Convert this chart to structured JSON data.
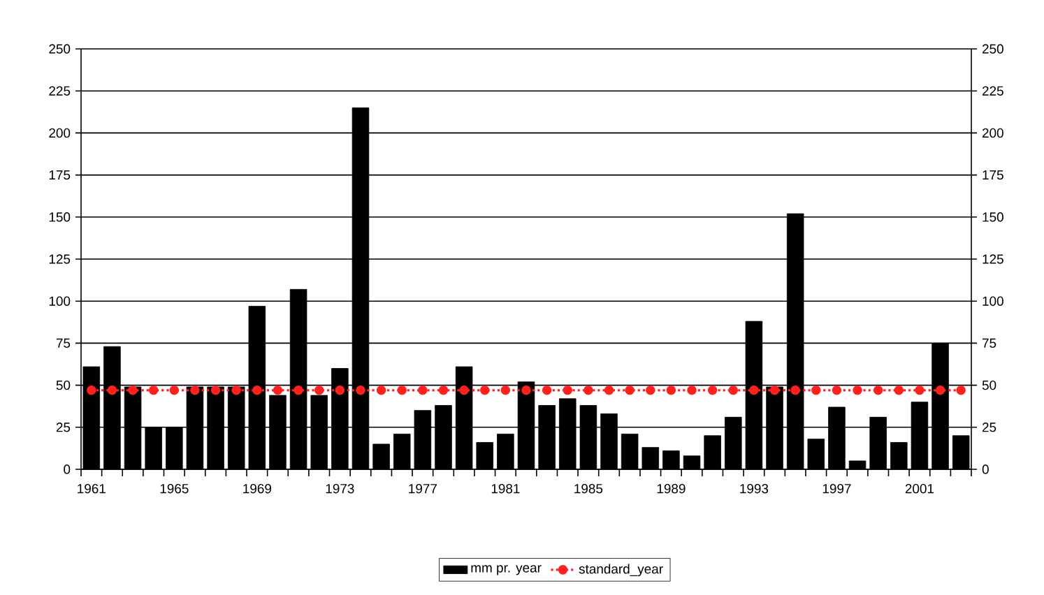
{
  "chart_data": {
    "type": "bar",
    "categories": [
      "1961",
      null,
      null,
      null,
      "1965",
      null,
      null,
      null,
      "1969",
      null,
      null,
      null,
      "1973",
      null,
      null,
      null,
      "1977",
      null,
      null,
      null,
      "1981",
      null,
      null,
      null,
      "1985",
      null,
      null,
      null,
      "1989",
      null,
      null,
      null,
      "1993",
      null,
      null,
      null,
      "1997",
      null,
      null,
      null,
      "2001",
      null,
      null
    ],
    "series": [
      {
        "name": "mm pr. year",
        "color": "#000000",
        "values": [
          61,
          73,
          49,
          25,
          25,
          49,
          49,
          49,
          97,
          44,
          107,
          44,
          60,
          215,
          15,
          21,
          35,
          38,
          61,
          16,
          21,
          52,
          38,
          42,
          38,
          33,
          21,
          13,
          11,
          8,
          20,
          31,
          88,
          49,
          152,
          18,
          37,
          5,
          31,
          16,
          40,
          75,
          20
        ]
      },
      {
        "name": "standard_year",
        "type": "line",
        "color": "#ff2020",
        "marker": "circle",
        "line_style": "dotted",
        "values": [
          47,
          47,
          47,
          47,
          47,
          47,
          47,
          47,
          47,
          47,
          47,
          47,
          47,
          47,
          47,
          47,
          47,
          47,
          47,
          47,
          47,
          47,
          47,
          47,
          47,
          47,
          47,
          47,
          47,
          47,
          47,
          47,
          47,
          47,
          47,
          47,
          47,
          47,
          47,
          47,
          47,
          47,
          47
        ]
      }
    ],
    "ylim": [
      0,
      250
    ],
    "yticks": [
      0,
      25,
      50,
      75,
      100,
      125,
      150,
      175,
      200,
      225,
      250
    ],
    "y2lim": [
      0,
      250
    ],
    "y2ticks": [
      0,
      25,
      50,
      75,
      100,
      125,
      150,
      175,
      200,
      225,
      250
    ],
    "grid": "y",
    "legend": "bottom"
  }
}
